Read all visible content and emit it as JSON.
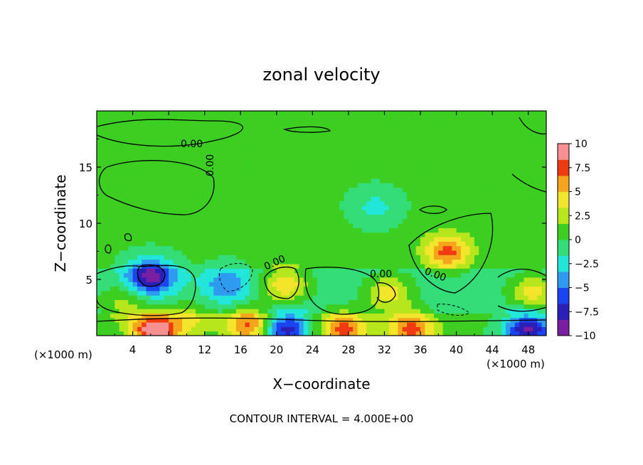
{
  "chart_data": {
    "type": "heatmap",
    "title": "zonal velocity",
    "xlabel": "X−coordinate",
    "ylabel": "Z−coordinate",
    "x_unit_left": "(×1000 m)",
    "x_unit_right": "(×1000 m)",
    "footer": "CONTOUR INTERVAL = 4.000E+00",
    "xlim": [
      0,
      50
    ],
    "ylim": [
      0,
      20
    ],
    "x_ticks": [
      4,
      8,
      12,
      16,
      20,
      24,
      28,
      32,
      36,
      40,
      44,
      48
    ],
    "y_ticks": [
      5,
      10,
      15
    ],
    "colorbar": {
      "range": [
        -10,
        10
      ],
      "tick_values": [
        10,
        7.5,
        5,
        2.5,
        0,
        -2.5,
        -5,
        -7.5,
        -10
      ],
      "tick_labels": [
        "10",
        "7.5",
        "5",
        "2.5",
        "0",
        "−2.5",
        "−5",
        "−7.5",
        "−10"
      ],
      "colors": [
        "#7b1fa2",
        "#2a1fb6",
        "#1a44f0",
        "#2e9bf0",
        "#22e6d9",
        "#33dd77",
        "#3ccf22",
        "#b8e61c",
        "#f2e52b",
        "#f4a51c",
        "#ef3a12",
        "#f79191"
      ]
    },
    "contour_labels": [
      "0.00",
      "0.00",
      "0.00",
      "0.00",
      "0.00"
    ],
    "features": [
      {
        "x": 6,
        "z": 5.3,
        "value": -8.5
      },
      {
        "x": 14.5,
        "z": 4.5,
        "value": -4
      },
      {
        "x": 21,
        "z": 4.5,
        "value": 5.5
      },
      {
        "x": 39,
        "z": 7.5,
        "value": 7
      },
      {
        "x": 48.5,
        "z": 3.8,
        "value": 5
      },
      {
        "x": 32.5,
        "z": 3.8,
        "value": 5
      },
      {
        "x": 31,
        "z": 11.5,
        "value": -2.5
      },
      {
        "x": 6.5,
        "z": 0.5,
        "value": 10
      },
      {
        "x": 17,
        "z": 1.0,
        "value": 7
      },
      {
        "x": 21,
        "z": 0.6,
        "value": -8
      },
      {
        "x": 27.5,
        "z": 0.6,
        "value": 7
      },
      {
        "x": 35,
        "z": 0.6,
        "value": 7
      },
      {
        "x": 48,
        "z": 0.5,
        "value": -9
      },
      {
        "x": 3,
        "z": 3.0,
        "value": 3
      },
      {
        "x": 10.5,
        "z": 1.5,
        "value": 3
      }
    ],
    "background_value": 0.3
  }
}
